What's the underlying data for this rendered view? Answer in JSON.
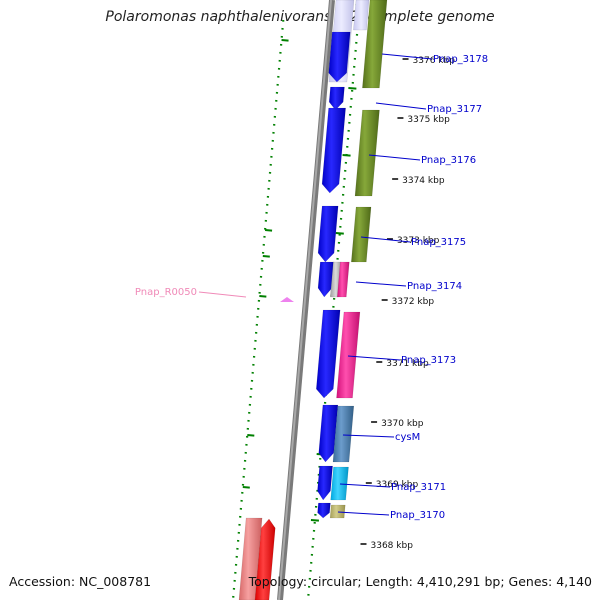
{
  "title": "Polaromonas naphthalenivorans CJ2, complete genome",
  "accession": "Accession: NC_008781",
  "summary": "Topology: circular; Length: 4,410,291 bp; Genes: 4,140",
  "scale_labels": [
    "3376 kbp",
    "3375 kbp",
    "3374 kbp",
    "3373 kbp",
    "3372 kbp",
    "3371 kbp",
    "3370 kbp",
    "3369 kbp",
    "3368 kbp"
  ],
  "gene_labels": [
    "Pnap_3178",
    "Pnap_3177",
    "Pnap_3176",
    "Pnap_3175",
    "Pnap_3174",
    "Pnap_3173",
    "cysM",
    "Pnap_3171",
    "Pnap_3170"
  ],
  "rna_label": "Pnap_R0050",
  "colors": {
    "cds_blue": "#0000ee",
    "olive": "#6b8e23",
    "pink": "#ff1493",
    "steel": "#4682b4",
    "cyan": "#00bfff",
    "khaki": "#bdb76b",
    "salmon": "#f08080",
    "red": "#ff0000",
    "backbone": "#808080",
    "gc_skew": "#008000",
    "label_line": "#0000cc",
    "rna_pink": "#ee82ee"
  }
}
